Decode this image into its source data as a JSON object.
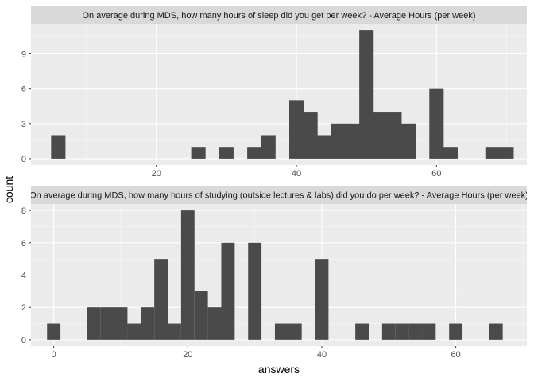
{
  "colors": {
    "panel_background": "#ebebeb",
    "grid_major": "#ffffff",
    "strip_background": "#d9d9d9",
    "bar_fill": "#4a4a4a",
    "tick_color": "#333333"
  },
  "axes": {
    "xlabel": "answers",
    "ylabel": "count"
  },
  "chart_data": [
    {
      "type": "bar",
      "facet_title": "On average during MDS, how many hours of sleep did you get per week? - Average Hours (per week)",
      "xlim": [
        2.1,
        72.9
      ],
      "ylim": [
        -0.55,
        11.55
      ],
      "x_ticks": [
        20,
        40,
        60
      ],
      "y_ticks": [
        0,
        3,
        6,
        9
      ],
      "bin_width": 2.05,
      "bars": [
        {
          "x": 6,
          "count": 2
        },
        {
          "x": 26,
          "count": 1
        },
        {
          "x": 30,
          "count": 1
        },
        {
          "x": 34,
          "count": 1
        },
        {
          "x": 36,
          "count": 2
        },
        {
          "x": 40,
          "count": 5
        },
        {
          "x": 42,
          "count": 4
        },
        {
          "x": 44,
          "count": 2
        },
        {
          "x": 46,
          "count": 3
        },
        {
          "x": 48,
          "count": 3
        },
        {
          "x": 50,
          "count": 11
        },
        {
          "x": 52,
          "count": 4
        },
        {
          "x": 54,
          "count": 4
        },
        {
          "x": 56,
          "count": 3
        },
        {
          "x": 60,
          "count": 6
        },
        {
          "x": 62,
          "count": 1
        },
        {
          "x": 68,
          "count": 1
        },
        {
          "x": 70,
          "count": 1
        }
      ]
    },
    {
      "type": "bar",
      "facet_title": "On average during MDS, how many hours of studying (outside lectures & labs) did you do per week? - Average Hours (per week)",
      "xlim": [
        -3.4,
        70.6
      ],
      "ylim": [
        -0.4,
        8.4
      ],
      "x_ticks": [
        0,
        20,
        40,
        60
      ],
      "y_ticks": [
        0,
        2,
        4,
        6,
        8
      ],
      "bin_width": 2.0,
      "bars": [
        {
          "x": 0,
          "count": 1
        },
        {
          "x": 6,
          "count": 2
        },
        {
          "x": 8,
          "count": 2
        },
        {
          "x": 10,
          "count": 2
        },
        {
          "x": 12,
          "count": 1
        },
        {
          "x": 14,
          "count": 2
        },
        {
          "x": 16,
          "count": 5
        },
        {
          "x": 18,
          "count": 1
        },
        {
          "x": 20,
          "count": 8
        },
        {
          "x": 22,
          "count": 3
        },
        {
          "x": 24,
          "count": 2
        },
        {
          "x": 26,
          "count": 6
        },
        {
          "x": 30,
          "count": 6
        },
        {
          "x": 34,
          "count": 1
        },
        {
          "x": 36,
          "count": 1
        },
        {
          "x": 40,
          "count": 5
        },
        {
          "x": 46,
          "count": 1
        },
        {
          "x": 50,
          "count": 1
        },
        {
          "x": 52,
          "count": 1
        },
        {
          "x": 54,
          "count": 1
        },
        {
          "x": 56,
          "count": 1
        },
        {
          "x": 60,
          "count": 1
        },
        {
          "x": 66,
          "count": 1
        }
      ]
    }
  ]
}
